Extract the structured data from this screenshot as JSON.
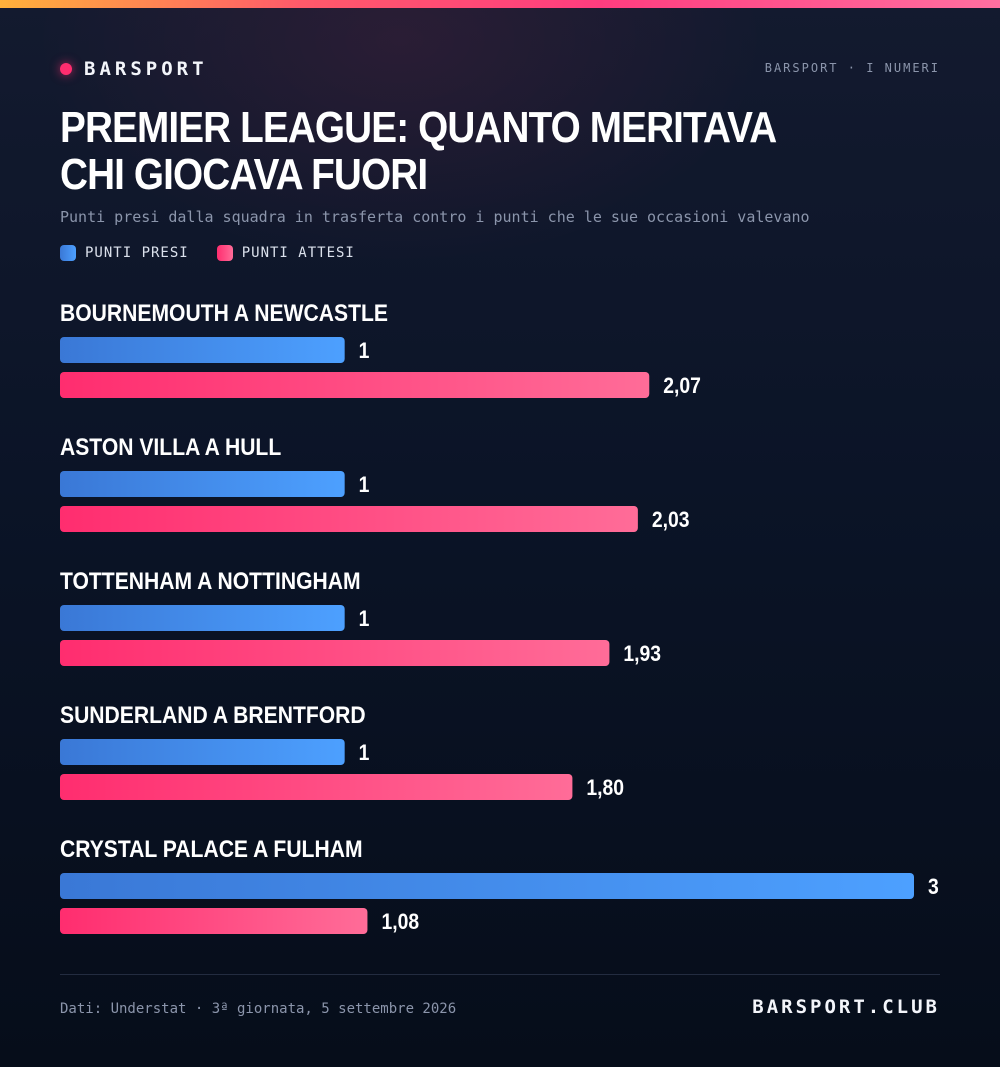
{
  "brand": {
    "name": "BARSPORT"
  },
  "header": {
    "kicker": "BARSPORT · I NUMERI"
  },
  "colors": {
    "accent": "#ff2d6f",
    "series_presi": [
      "#3a78d6",
      "#4da0ff"
    ],
    "series_attesi": [
      "#ff2d6f",
      "#ff6c98"
    ]
  },
  "chart_data": {
    "type": "bar",
    "orientation": "horizontal",
    "title": "PREMIER LEAGUE: QUANTO MERITAVA CHI GIOCAVA FUORI",
    "subtitle": "Punti presi dalla squadra in trasferta contro i punti che le sue occasioni valevano",
    "categories": [
      "BOURNEMOUTH A NEWCASTLE",
      "ASTON VILLA A HULL",
      "TOTTENHAM A NOTTINGHAM",
      "SUNDERLAND A BRENTFORD",
      "CRYSTAL PALACE A FULHAM"
    ],
    "series": [
      {
        "name": "PUNTI PRESI",
        "values": [
          1,
          1,
          1,
          1,
          3
        ],
        "labels": [
          "1",
          "1",
          "1",
          "1",
          "3"
        ]
      },
      {
        "name": "PUNTI ATTESI",
        "values": [
          2.07,
          2.03,
          1.93,
          1.8,
          1.08
        ],
        "labels": [
          "2,07",
          "2,03",
          "1,93",
          "1,80",
          "1,08"
        ]
      }
    ],
    "xlim": [
      0,
      3
    ],
    "grid": false,
    "legend": "top-left"
  },
  "footer": {
    "source": "Dati: Understat · 3ª giornata, 5 settembre 2026",
    "site": "BARSPORT.CLUB"
  }
}
